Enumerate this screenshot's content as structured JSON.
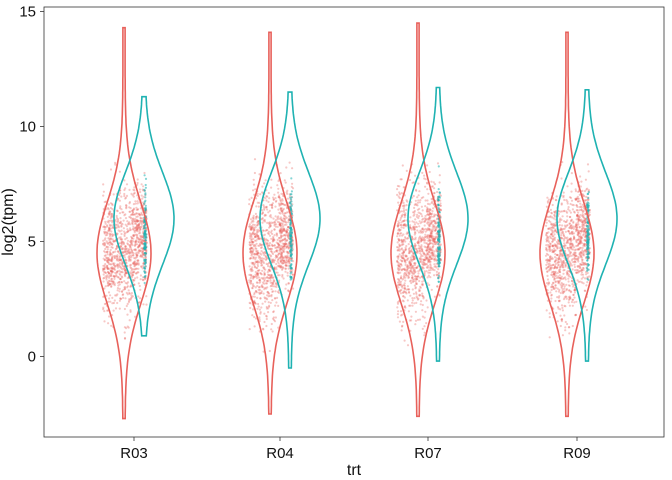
{
  "chart_data": {
    "type": "violin",
    "title": "",
    "xlabel": "trt",
    "ylabel": "log2(tpm)",
    "categories": [
      "R03",
      "R04",
      "R07",
      "R09"
    ],
    "ylim": [
      -3.5,
      15.2
    ],
    "yticks": [
      0,
      5,
      10,
      15
    ],
    "grid": false,
    "legend": "none",
    "series": [
      {
        "name": "red",
        "color": "#E8615B",
        "ranges": [
          [
            -2.7,
            14.3
          ],
          [
            -2.5,
            14.1
          ],
          [
            -2.6,
            14.5
          ],
          [
            -2.6,
            14.1
          ]
        ],
        "modes": [
          4.5,
          4.5,
          4.5,
          4.5
        ]
      },
      {
        "name": "teal",
        "color": "#1FB2B2",
        "ranges": [
          [
            0.9,
            11.3
          ],
          [
            -0.5,
            11.5
          ],
          [
            -0.2,
            11.7
          ],
          [
            -0.2,
            11.6
          ]
        ],
        "modes": [
          6.0,
          6.0,
          6.0,
          6.0
        ]
      }
    ]
  }
}
